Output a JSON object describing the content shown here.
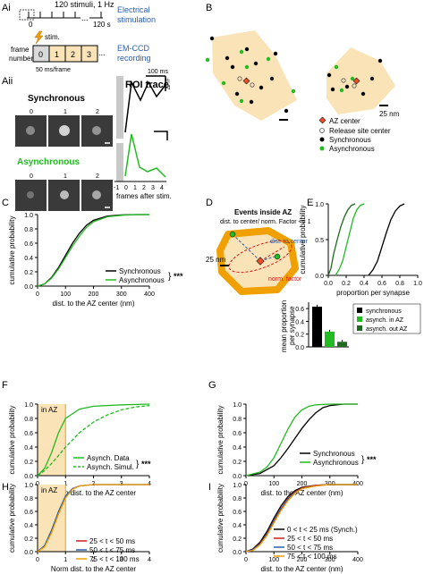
{
  "colors": {
    "synchronous": "#000000",
    "asynchronous": "#22bb22",
    "asynch_out_az": "#1f6b1f",
    "az_fill": "#fbe3b8",
    "az_center": "#e8502a",
    "blue": "#2a5db0",
    "red": "#d11a1a",
    "orange": "#f0a000"
  },
  "panels": {
    "A": {
      "label_i": "Ai",
      "label_ii": "Aii",
      "stimuli": "120 stimuli, 1 Hz",
      "t0": "0",
      "t_end": "120 s",
      "electrical": "Electrical",
      "stimulation": "stimulation",
      "stim": "stim.",
      "frame": "frame",
      "number": "number",
      "frames": [
        "0",
        "1",
        "2",
        "3"
      ],
      "ellipsis": "...",
      "emccd": "EM-CCD",
      "recording": "recording",
      "frame_rate": "50 ms/frame",
      "roi_trace": "ROI trace",
      "synchronous": "Synchronous",
      "asynchronous": "Asynchronous",
      "trace_scale_time": "100 ms",
      "trace_scale_y": "ΔF/F",
      "x_ticks": [
        "-1",
        "0",
        "1",
        "2",
        "3",
        "4"
      ],
      "x_label": "frames after stim."
    },
    "B": {
      "label": "B",
      "scale": "25 nm",
      "legend": [
        "AZ center",
        "Release site center",
        "Synchronous",
        "Asynchronous"
      ]
    },
    "C": {
      "label": "C",
      "ylabel": "cumulative probability",
      "xlabel": "dist. to the AZ center (nm)",
      "legend": [
        "Synchronous",
        "Asynchronous"
      ],
      "sig": "***"
    },
    "D": {
      "label": "D",
      "title1": "Events inside AZ",
      "title2": "dist. to center/ norm. Factor <= 1",
      "dist_label": "dist. to center",
      "norm_label": "norm. factor",
      "scale": "25 nm"
    },
    "E": {
      "label": "E",
      "ylabel": "cumulative probability",
      "xlabel": "proportion per synapse",
      "ylabel2": "mean proportion per synapse",
      "legend": [
        "synchronous",
        "asynch. in AZ",
        "asynch. out AZ"
      ]
    },
    "F": {
      "label": "F",
      "in_az": "in AZ",
      "ylabel": "cumulative probability",
      "xlabel": "Norm dist. to the AZ center",
      "legend": [
        "Asynch. Data",
        "Asynch. Simul."
      ],
      "sig": "***"
    },
    "G": {
      "label": "G",
      "ylabel": "cumulative probability",
      "xlabel": "dist. to the AZ center (nm)",
      "legend": [
        "Synchronous",
        "Asynchronous"
      ],
      "sig": "***"
    },
    "H": {
      "label": "H",
      "in_az": "in AZ",
      "ylabel": "cumulative probability",
      "xlabel": "Norm dist. to the AZ center",
      "legend": [
        "25 < t < 50 ms",
        "50 < t < 75 ms",
        "75 < t < 100 ms"
      ]
    },
    "I": {
      "label": "I",
      "ylabel": "cumulative probability",
      "xlabel": "dist. to the AZ center (nm)",
      "legend": [
        "0 < t < 25 ms (Synch.)",
        "25 < t < 50 ms",
        "50 < t < 75 ms",
        "75 < t < 100 ms"
      ]
    }
  },
  "chart_data": [
    {
      "type": "line",
      "panel": "C",
      "x_ticks": [
        0,
        100,
        200,
        300,
        400
      ],
      "xlim": [
        0,
        400
      ],
      "y_ticks": [
        0,
        0.2,
        0.4,
        0.6,
        0.8,
        1.0
      ],
      "ylim": [
        0,
        1
      ],
      "series": [
        {
          "name": "Synchronous",
          "x": [
            0,
            25,
            50,
            75,
            100,
            125,
            150,
            175,
            200,
            250,
            300,
            350,
            400
          ],
          "y": [
            0,
            0.03,
            0.12,
            0.26,
            0.43,
            0.6,
            0.74,
            0.85,
            0.92,
            0.98,
            0.995,
            1,
            1
          ]
        },
        {
          "name": "Asynchronous",
          "x": [
            0,
            25,
            50,
            75,
            100,
            125,
            150,
            175,
            200,
            250,
            300,
            350,
            400
          ],
          "y": [
            0,
            0.03,
            0.11,
            0.24,
            0.4,
            0.56,
            0.7,
            0.82,
            0.9,
            0.97,
            0.99,
            1,
            1
          ]
        }
      ]
    },
    {
      "type": "line",
      "panel": "E",
      "x_ticks": [
        0,
        0.2,
        0.4,
        0.6,
        0.8,
        1.0
      ],
      "xlim": [
        0,
        1
      ],
      "y_ticks": [
        0,
        0.5,
        1.0
      ],
      "ylim": [
        0,
        1
      ],
      "series": [
        {
          "name": "asynch. out AZ",
          "x": [
            0,
            0.03,
            0.06,
            0.1,
            0.14,
            0.18,
            0.22,
            0.26,
            0.3
          ],
          "y": [
            0,
            0.1,
            0.3,
            0.5,
            0.68,
            0.82,
            0.92,
            0.98,
            1
          ]
        },
        {
          "name": "asynch. in AZ",
          "x": [
            0.08,
            0.12,
            0.16,
            0.2,
            0.24,
            0.28,
            0.32,
            0.36,
            0.4
          ],
          "y": [
            0,
            0.08,
            0.2,
            0.4,
            0.6,
            0.8,
            0.92,
            0.98,
            1
          ]
        },
        {
          "name": "synchronous",
          "x": [
            0.45,
            0.5,
            0.55,
            0.6,
            0.65,
            0.7,
            0.75,
            0.8,
            0.85
          ],
          "y": [
            0,
            0.08,
            0.2,
            0.4,
            0.6,
            0.78,
            0.9,
            0.97,
            1
          ]
        }
      ]
    },
    {
      "type": "bar",
      "panel": "E",
      "categories": [
        "synchronous",
        "asynch. in AZ",
        "asynch. out AZ"
      ],
      "values": [
        0.63,
        0.24,
        0.08
      ],
      "y_ticks": [
        0,
        0.2,
        0.4,
        0.6
      ],
      "ylim": [
        0,
        0.7
      ]
    },
    {
      "type": "line",
      "panel": "F",
      "x_ticks": [
        0,
        1,
        2,
        3,
        4
      ],
      "xlim": [
        0,
        4
      ],
      "y_ticks": [
        0,
        0.2,
        0.4,
        0.6,
        0.8,
        1.0
      ],
      "ylim": [
        0,
        1
      ],
      "series": [
        {
          "name": "Asynch. Data",
          "x": [
            0,
            0.25,
            0.5,
            0.75,
            1.0,
            1.5,
            2.0,
            3.0,
            4.0
          ],
          "y": [
            0,
            0.1,
            0.32,
            0.6,
            0.8,
            0.93,
            0.97,
            0.99,
            1
          ]
        },
        {
          "name": "Asynch. Simul.",
          "x": [
            0,
            0.25,
            0.5,
            0.75,
            1.0,
            1.5,
            2.0,
            2.5,
            3.0,
            3.5,
            4.0
          ],
          "y": [
            0,
            0.07,
            0.17,
            0.28,
            0.4,
            0.6,
            0.75,
            0.85,
            0.92,
            0.96,
            0.98
          ]
        }
      ]
    },
    {
      "type": "line",
      "panel": "G",
      "x_ticks": [
        0,
        100,
        200,
        300,
        400
      ],
      "xlim": [
        0,
        400
      ],
      "y_ticks": [
        0,
        0.2,
        0.4,
        0.6,
        0.8,
        1.0
      ],
      "ylim": [
        0,
        1
      ],
      "series": [
        {
          "name": "Synchronous",
          "x": [
            0,
            50,
            100,
            125,
            150,
            175,
            200,
            225,
            250,
            275,
            300,
            350,
            400
          ],
          "y": [
            0,
            0.03,
            0.14,
            0.25,
            0.38,
            0.52,
            0.66,
            0.78,
            0.88,
            0.95,
            0.98,
            1,
            1
          ]
        },
        {
          "name": "Asynchronous",
          "x": [
            0,
            50,
            75,
            100,
            125,
            150,
            175,
            200,
            225,
            250,
            300,
            350,
            400
          ],
          "y": [
            0,
            0.05,
            0.12,
            0.25,
            0.45,
            0.65,
            0.82,
            0.92,
            0.97,
            0.99,
            1,
            1,
            1
          ]
        }
      ]
    },
    {
      "type": "line",
      "panel": "H",
      "x_ticks": [
        0,
        1,
        2,
        3,
        4
      ],
      "xlim": [
        0,
        4
      ],
      "y_ticks": [
        0,
        0.2,
        0.4,
        0.6,
        0.8,
        1.0
      ],
      "ylim": [
        0,
        1
      ],
      "series": [
        {
          "name": "25 < t < 50 ms",
          "x": [
            0,
            0.25,
            0.5,
            0.75,
            1.0,
            1.25,
            1.5,
            2.0,
            3.0,
            4.0
          ],
          "y": [
            0,
            0.08,
            0.3,
            0.58,
            0.82,
            0.94,
            0.98,
            1,
            1,
            1
          ]
        },
        {
          "name": "50 < t < 75 ms",
          "x": [
            0,
            0.25,
            0.5,
            0.75,
            1.0,
            1.25,
            1.5,
            2.0,
            3.0,
            4.0
          ],
          "y": [
            0,
            0.09,
            0.32,
            0.6,
            0.83,
            0.94,
            0.98,
            1,
            1,
            1
          ]
        },
        {
          "name": "75 < t < 100 ms",
          "x": [
            0,
            0.25,
            0.5,
            0.75,
            1.0,
            1.25,
            1.5,
            2.0,
            3.0,
            4.0
          ],
          "y": [
            0,
            0.07,
            0.28,
            0.56,
            0.8,
            0.93,
            0.98,
            1,
            1,
            1
          ]
        }
      ]
    },
    {
      "type": "line",
      "panel": "I",
      "x_ticks": [
        0,
        100,
        200,
        300,
        400
      ],
      "xlim": [
        0,
        400
      ],
      "y_ticks": [
        0,
        0.2,
        0.4,
        0.6,
        0.8,
        1.0
      ],
      "ylim": [
        0,
        1
      ],
      "series": [
        {
          "name": "0 < t < 25 ms (Synch.)",
          "x": [
            0,
            25,
            50,
            75,
            100,
            125,
            150,
            175,
            200,
            250,
            300,
            400
          ],
          "y": [
            0,
            0.04,
            0.14,
            0.3,
            0.5,
            0.68,
            0.82,
            0.91,
            0.96,
            0.99,
            1,
            1
          ]
        },
        {
          "name": "25 < t < 50 ms",
          "x": [
            0,
            25,
            50,
            75,
            100,
            125,
            150,
            175,
            200,
            250,
            300,
            400
          ],
          "y": [
            0,
            0.03,
            0.12,
            0.27,
            0.46,
            0.64,
            0.79,
            0.89,
            0.95,
            0.99,
            1,
            1
          ]
        },
        {
          "name": "50 < t < 75 ms",
          "x": [
            0,
            25,
            50,
            75,
            100,
            125,
            150,
            175,
            200,
            250,
            300,
            400
          ],
          "y": [
            0,
            0.03,
            0.11,
            0.26,
            0.45,
            0.63,
            0.78,
            0.88,
            0.94,
            0.98,
            1,
            1
          ]
        },
        {
          "name": "75 < t < 100 ms",
          "x": [
            0,
            25,
            50,
            75,
            100,
            125,
            150,
            175,
            200,
            250,
            300,
            400
          ],
          "y": [
            0,
            0.02,
            0.1,
            0.24,
            0.43,
            0.61,
            0.76,
            0.87,
            0.94,
            0.98,
            1,
            1
          ]
        }
      ]
    }
  ]
}
